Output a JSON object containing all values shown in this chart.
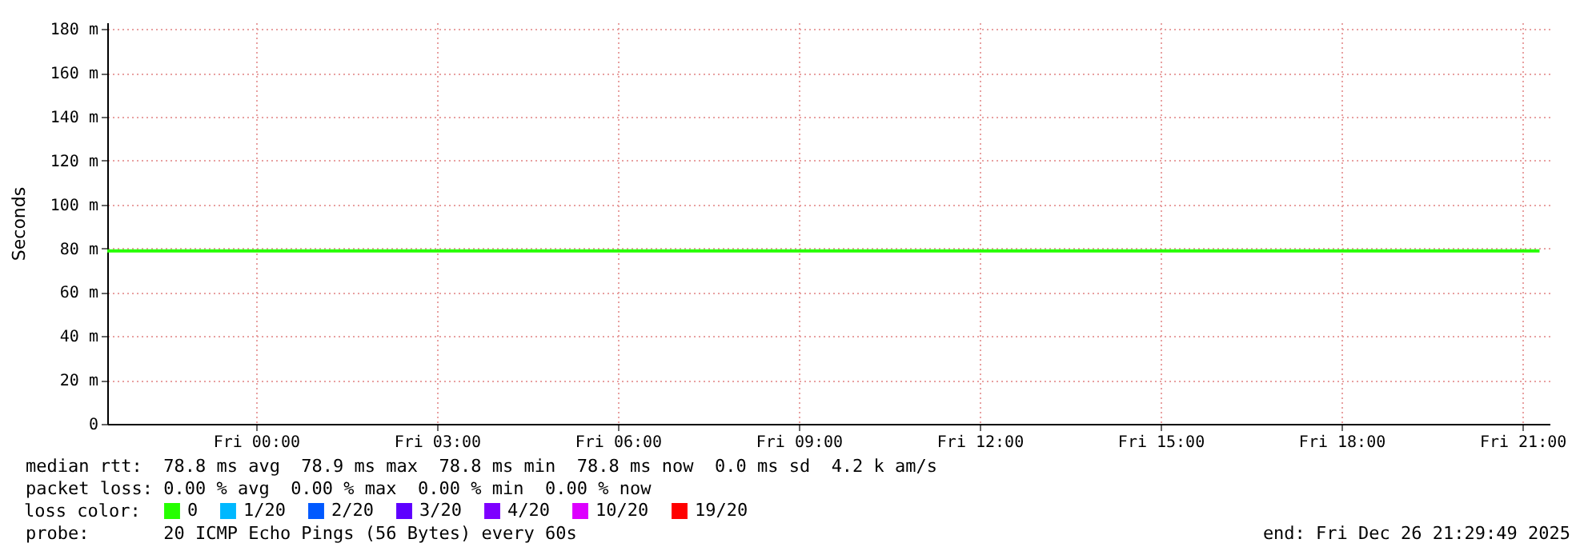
{
  "chart_data": {
    "type": "line",
    "ylabel": "Seconds",
    "legend_title": "loss color:",
    "legend": "bottom left",
    "grid": true,
    "marker": "none",
    "line_style": "solid",
    "x": [
      "2025-12-25T21:32",
      "2025-12-26T21:17"
    ],
    "xlim": [
      "2025-12-25T21:32",
      "2025-12-26T21:27"
    ],
    "xticks": [
      {
        "value": "2025-12-26T00:00",
        "label": "Fri 00:00"
      },
      {
        "value": "2025-12-26T03:00",
        "label": "Fri 03:00"
      },
      {
        "value": "2025-12-26T06:00",
        "label": "Fri 06:00"
      },
      {
        "value": "2025-12-26T09:00",
        "label": "Fri 09:00"
      },
      {
        "value": "2025-12-26T12:00",
        "label": "Fri 12:00"
      },
      {
        "value": "2025-12-26T15:00",
        "label": "Fri 15:00"
      },
      {
        "value": "2025-12-26T18:00",
        "label": "Fri 18:00"
      },
      {
        "value": "2025-12-26T21:00",
        "label": "Fri 21:00"
      }
    ],
    "ylim": [
      0,
      183
    ],
    "yticks": [
      0,
      {
        "value": 20,
        "label": "20 m"
      },
      {
        "value": 40,
        "label": "40 m"
      },
      {
        "value": 60,
        "label": "60 m"
      },
      {
        "value": 80,
        "label": "80 m"
      },
      {
        "value": 100,
        "label": "100 m"
      },
      {
        "value": 120,
        "label": "120 m"
      },
      {
        "value": 140,
        "label": "140 m"
      },
      {
        "value": 160,
        "label": "160 m"
      },
      {
        "value": 180,
        "label": "180 m"
      }
    ],
    "series": [
      {
        "name": "0",
        "color": "#26ff00",
        "values": [
          78.8,
          78.8
        ]
      },
      {
        "name": "1/20",
        "color": "#00b8ff",
        "values": [
          null,
          null
        ]
      },
      {
        "name": "2/20",
        "color": "#0059ff",
        "values": [
          null,
          null
        ]
      },
      {
        "name": "3/20",
        "color": "#5e00ff",
        "values": [
          null,
          null
        ]
      },
      {
        "name": "4/20",
        "color": "#7e00ff",
        "values": [
          null,
          null
        ]
      },
      {
        "name": "10/20",
        "color": "#dd00ff",
        "values": [
          null,
          null
        ]
      },
      {
        "name": "19/20",
        "color": "#ff0000",
        "values": [
          null,
          null
        ]
      }
    ],
    "annotations": [
      "median rtt:  78.8 ms avg  78.9 ms max  78.8 ms min  78.8 ms now  0.0 ms sd  4.2 k am/s",
      "packet loss: 0.00 % avg  0.00 % max  0.00 % min  0.00 % now",
      "probe:       20 ICMP Echo Pings (56 Bytes) every 60s",
      "end: Fri Dec 26 21:29:49 2025"
    ]
  }
}
